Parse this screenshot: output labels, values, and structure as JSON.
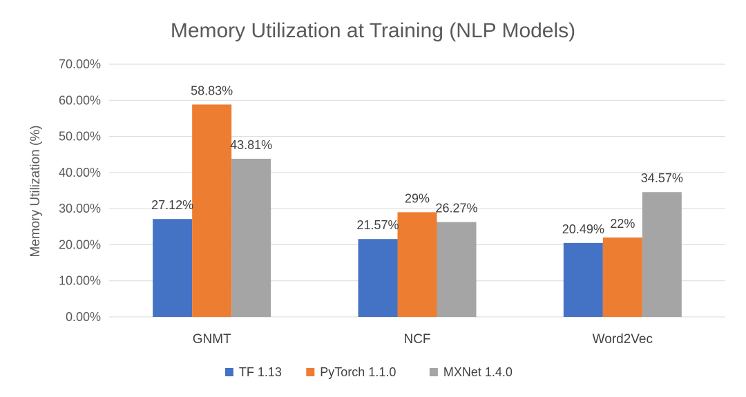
{
  "chart_data": {
    "type": "bar",
    "title": "Memory Utilization at Training (NLP Models)",
    "xlabel": "",
    "ylabel": "Memory Utilization (%)",
    "categories": [
      "GNMT",
      "NCF",
      "Word2Vec"
    ],
    "series": [
      {
        "name": "TF 1.13",
        "color": "#4472c4",
        "values": [
          27.12,
          21.57,
          20.49
        ],
        "labels": [
          "27.12%",
          "21.57%",
          "20.49%"
        ]
      },
      {
        "name": "PyTorch 1.1.0",
        "color": "#ed7d31",
        "values": [
          58.83,
          29,
          22
        ],
        "labels": [
          "58.83%",
          "29%",
          "22%"
        ]
      },
      {
        "name": "MXNet 1.4.0",
        "color": "#a5a5a5",
        "values": [
          43.81,
          26.27,
          34.57
        ],
        "labels": [
          "43.81%",
          "26.27%",
          "34.57%"
        ]
      }
    ],
    "ylim": [
      0,
      70
    ],
    "yticks": [
      0,
      10,
      20,
      30,
      40,
      50,
      60,
      70
    ],
    "ytick_labels": [
      "0.00%",
      "10.00%",
      "20.00%",
      "30.00%",
      "40.00%",
      "50.00%",
      "60.00%",
      "70.00%"
    ],
    "grid": true,
    "legend_position": "bottom"
  }
}
